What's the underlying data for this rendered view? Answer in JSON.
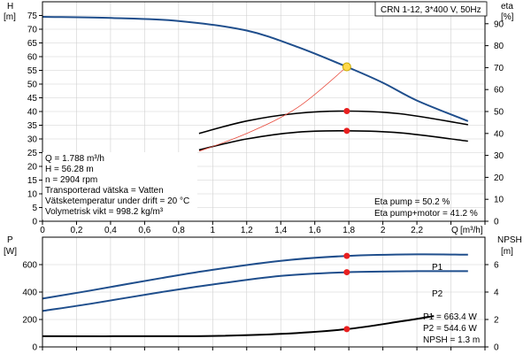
{
  "title": "CRN 1-12, 3*400 V, 50Hz",
  "chart_data": [
    {
      "type": "line",
      "name": "qh-eta",
      "y_label": "H",
      "y_unit": "[m]",
      "y2_label": "eta",
      "y2_unit": "[%]",
      "x_label": "Q",
      "x_unit": "[m³/h]",
      "xlim": [
        0,
        2.6
      ],
      "ylim": [
        0,
        80
      ],
      "y2lim": [
        0,
        100
      ],
      "x_ticks": [
        "0",
        "0,2",
        "0,4",
        "0,6",
        "0,8",
        "1",
        "1,2",
        "1,4",
        "1,6",
        "1,8",
        "2",
        "2,2"
      ],
      "y_ticks": [
        "0",
        "5",
        "10",
        "15",
        "20",
        "25",
        "30",
        "35",
        "40",
        "45",
        "50",
        "55",
        "60",
        "65",
        "70",
        "75"
      ],
      "y2_ticks": [
        "0",
        "10",
        "20",
        "30",
        "40",
        "50",
        "60",
        "70",
        "80",
        "90"
      ],
      "series": [
        {
          "axis": "left",
          "color": "#1f4e8c",
          "points": [
            [
              0,
              74.5
            ],
            [
              0.4,
              74.1
            ],
            [
              0.8,
              73
            ],
            [
              1.2,
              69.5
            ],
            [
              1.5,
              63.5
            ],
            [
              1.788,
              56.28
            ],
            [
              2.0,
              50.5
            ],
            [
              2.2,
              44
            ],
            [
              2.5,
              36.5
            ]
          ]
        },
        {
          "axis": "right",
          "color": "#000000",
          "points": [
            [
              0.92,
              40
            ],
            [
              1.2,
              45.7
            ],
            [
              1.5,
              49.2
            ],
            [
              1.788,
              50.2
            ],
            [
              2.1,
              49
            ],
            [
              2.5,
              44
            ]
          ]
        },
        {
          "axis": "right",
          "color": "#000000",
          "points": [
            [
              0.92,
              32.5
            ],
            [
              1.2,
              37.5
            ],
            [
              1.5,
              40.6
            ],
            [
              1.788,
              41.2
            ],
            [
              2.1,
              40.3
            ],
            [
              2.5,
              36.5
            ]
          ]
        },
        {
          "axis": "left",
          "color": "#e84a3c",
          "points": [
            [
              0.92,
              25.5
            ],
            [
              1.2,
              32
            ],
            [
              1.5,
              41.5
            ],
            [
              1.788,
              56.28
            ]
          ]
        }
      ],
      "markers": [
        {
          "axis": "left",
          "x": 1.788,
          "y": 56.28,
          "color": "#ffd84a"
        },
        {
          "axis": "right",
          "x": 1.788,
          "y": 50.2,
          "color": "#e81f1f"
        },
        {
          "axis": "right",
          "x": 1.788,
          "y": 41.2,
          "color": "#e81f1f"
        }
      ],
      "info": {
        "lines": [
          "Q = 1.788 m³/h",
          "H = 56.28 m",
          "n = 2904 rpm",
          "Transporterad vätska = Vatten",
          "Vätsketemperatur under drift = 20 °C",
          "Volymetrisk vikt = 998.2 kg/m³"
        ],
        "eta_pump": "Eta pump = 50.2 %",
        "eta_pump_motor": "Eta pump+motor = 41.2 %"
      }
    },
    {
      "type": "line",
      "name": "power-npsh",
      "y_label": "P",
      "y_unit": "[W]",
      "y2_label": "NPSH",
      "y2_unit": "[m]",
      "xlim": [
        0,
        2.6
      ],
      "ylim": [
        0,
        800
      ],
      "y2lim": [
        0,
        8
      ],
      "y_ticks": [
        "0",
        "200",
        "400",
        "600"
      ],
      "y2_ticks": [
        "0",
        "2",
        "4",
        "6"
      ],
      "series": [
        {
          "name": "P1",
          "axis": "left",
          "color": "#1f4e8c",
          "points": [
            [
              0,
              352
            ],
            [
              0.3,
              415
            ],
            [
              0.7,
              502
            ],
            [
              1.0,
              562
            ],
            [
              1.4,
              628
            ],
            [
              1.788,
              663.4
            ],
            [
              2.2,
              675
            ],
            [
              2.5,
              672
            ]
          ]
        },
        {
          "name": "P2",
          "axis": "left",
          "color": "#1f4e8c",
          "points": [
            [
              0,
              262
            ],
            [
              0.3,
              318
            ],
            [
              0.7,
              400
            ],
            [
              1.0,
              455
            ],
            [
              1.4,
              518
            ],
            [
              1.788,
              544.6
            ],
            [
              2.2,
              552
            ],
            [
              2.5,
              552
            ]
          ]
        },
        {
          "axis": "right",
          "color": "#000000",
          "points": [
            [
              0,
              0.78
            ],
            [
              0.7,
              0.78
            ],
            [
              1.0,
              0.8
            ],
            [
              1.4,
              0.95
            ],
            [
              1.788,
              1.3
            ],
            [
              2.1,
              1.85
            ],
            [
              2.3,
              2.25
            ]
          ]
        }
      ],
      "markers": [
        {
          "axis": "left",
          "x": 1.788,
          "y": 663.4,
          "color": "#e81f1f"
        },
        {
          "axis": "left",
          "x": 1.788,
          "y": 544.6,
          "color": "#e81f1f"
        },
        {
          "axis": "right",
          "x": 1.788,
          "y": 1.3,
          "color": "#e81f1f"
        }
      ],
      "info": {
        "p1": "P1 = 663.4 W",
        "p2": "P2 = 544.6 W",
        "npsh": "NPSH = 1.3 m"
      }
    }
  ]
}
